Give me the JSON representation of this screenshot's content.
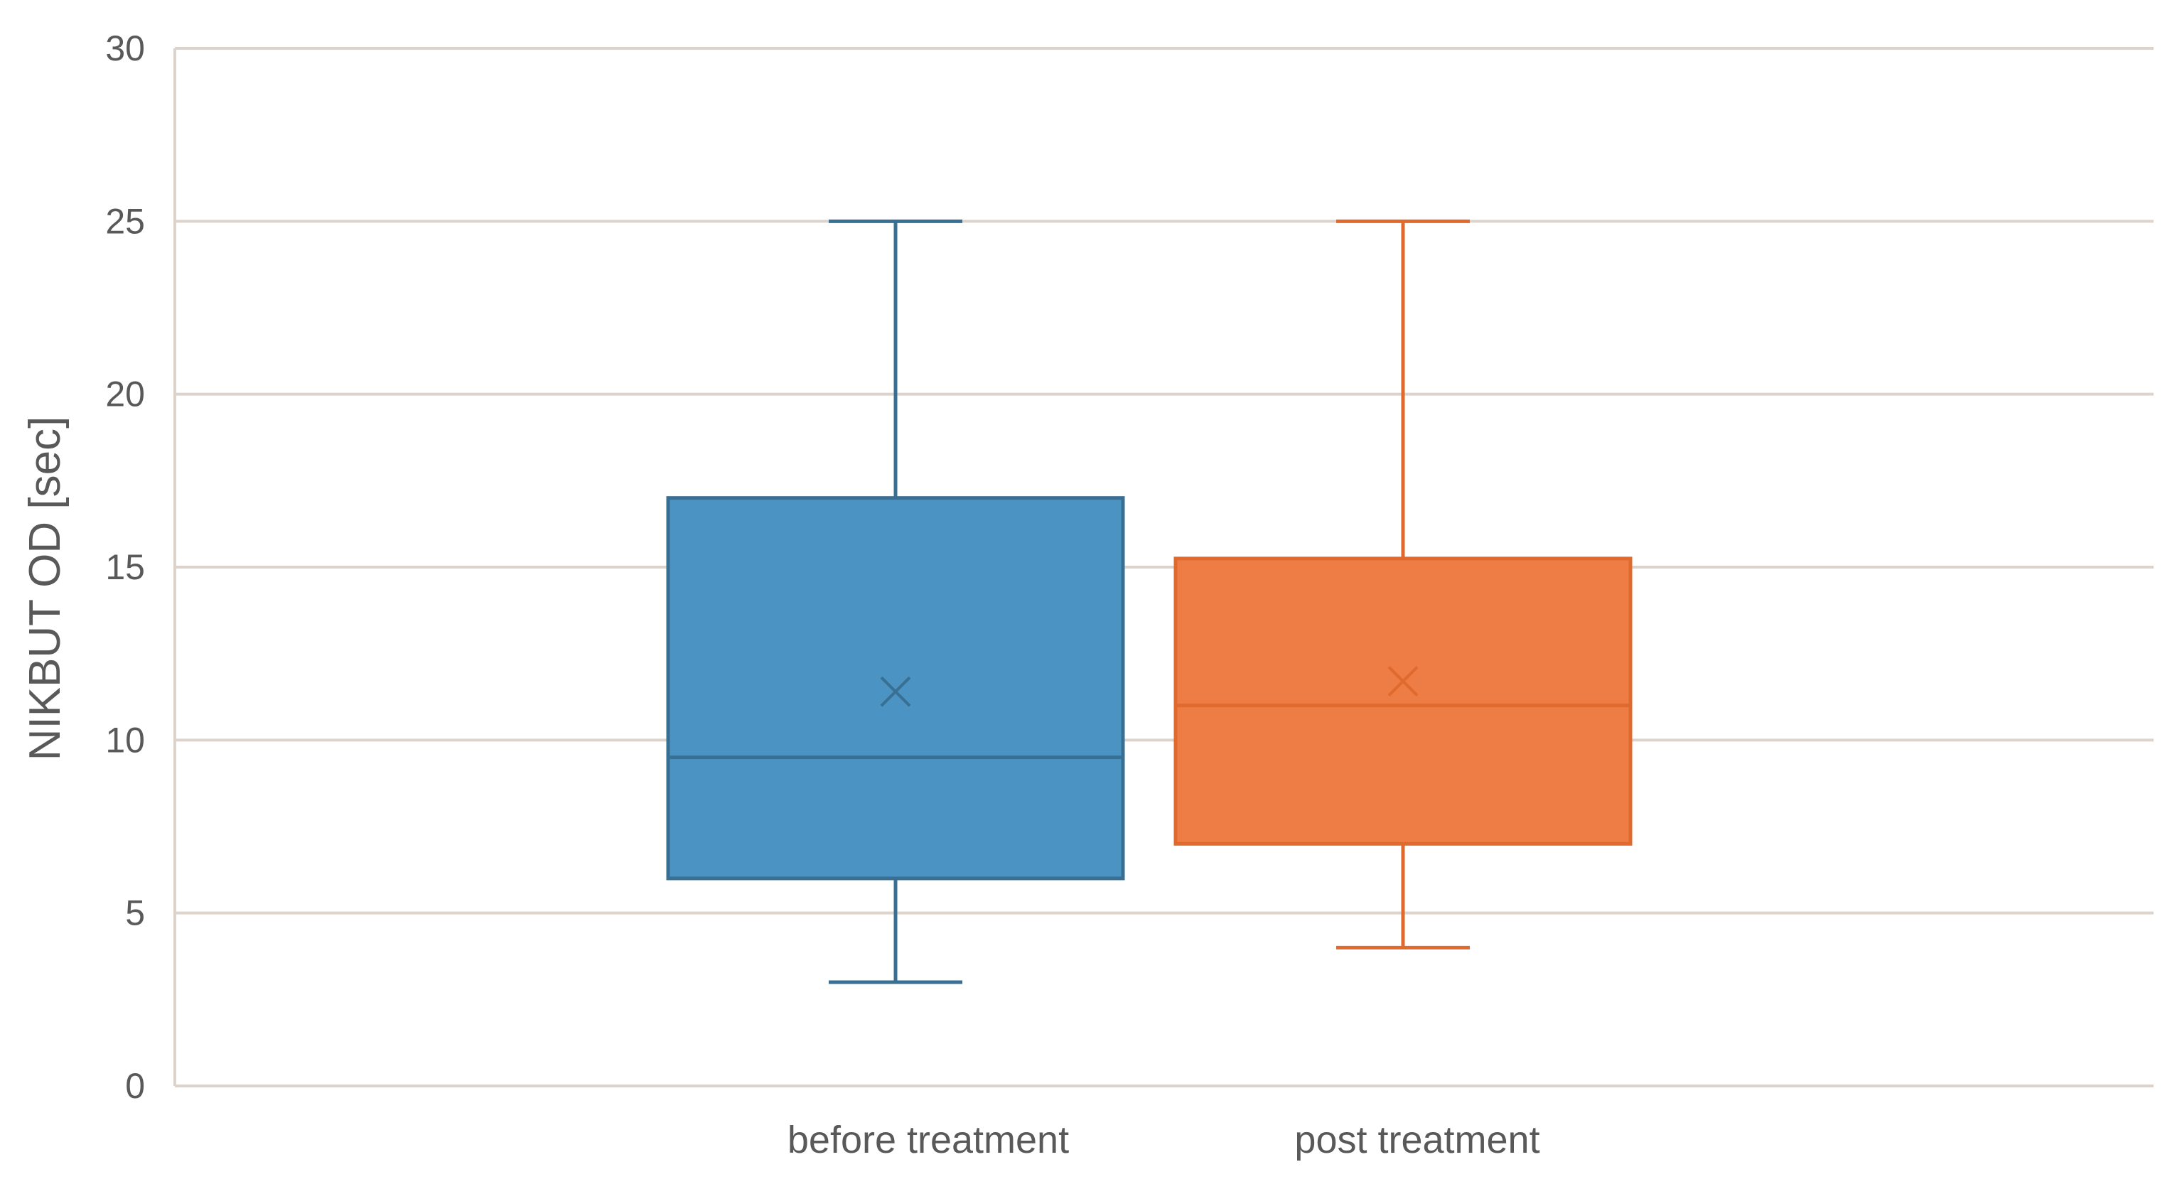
{
  "chart_data": {
    "type": "box",
    "title": "",
    "xlabel": "",
    "ylabel": "NIKBUT OD [sec]",
    "ylim": [
      0,
      30
    ],
    "yticks": [
      0,
      5,
      10,
      15,
      20,
      25,
      30
    ],
    "grid": true,
    "legend": "none",
    "categories": [
      "before treatment",
      "post treatment"
    ],
    "series": [
      {
        "category": "before treatment",
        "color": "#4A93C2",
        "line_color": "#3A6F94",
        "min": 3,
        "q1": 6,
        "median": 9.5,
        "q3": 17,
        "max": 25,
        "mean": 11.4
      },
      {
        "category": "post treatment",
        "color": "#ED7D45",
        "line_color": "#E06A2E",
        "min": 4,
        "q1": 7,
        "median": 11,
        "q3": 15.25,
        "max": 25,
        "mean": 11.7
      }
    ],
    "colors": {
      "grid": "#DCD4CC",
      "axis": "#DCD4CC",
      "text": "#595959"
    }
  }
}
